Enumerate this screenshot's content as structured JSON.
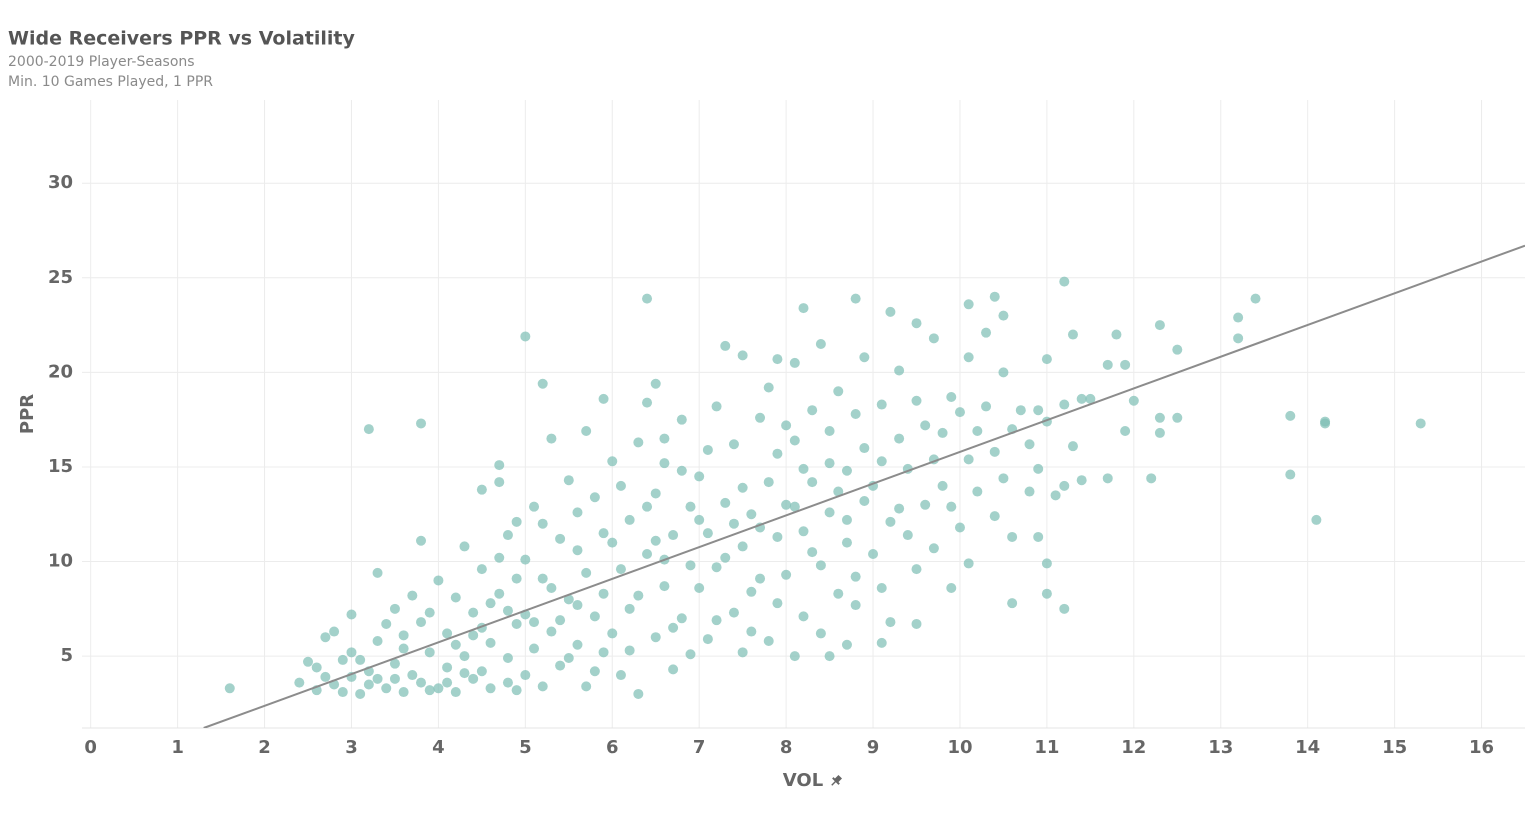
{
  "chart_data": {
    "type": "scatter",
    "title": "Wide Receivers PPR vs Volatility",
    "subtitle": [
      "2000-2019 Player-Seasons",
      "Min. 10 Games Played, 1 PPR"
    ],
    "x_label": "VOL",
    "y_label": "PPR",
    "color": "#7fbfb5",
    "grid": true,
    "xlim": [
      -0.1,
      16.5
    ],
    "ylim": [
      1.2,
      34.4
    ],
    "xticks": [
      0,
      1,
      2,
      3,
      4,
      5,
      6,
      7,
      8,
      9,
      10,
      11,
      12,
      13,
      14,
      15,
      16
    ],
    "yticks": [
      5,
      10,
      15,
      20,
      25,
      30
    ],
    "trendline": {
      "color": "#8c8c8c",
      "x": [
        1.3,
        16.5
      ],
      "y": [
        1.2,
        26.7
      ]
    },
    "x": [
      1.6,
      3.2,
      3.8,
      5.0,
      5.2,
      6.4,
      8.2,
      8.8,
      10.1,
      10.4,
      11.2,
      13.4,
      13.2,
      13.2,
      12.3,
      12.5,
      11.3,
      11.8,
      11.7,
      11.9,
      11.5,
      12.0,
      12.3,
      12.5,
      12.3,
      11.9,
      11.7,
      12.2,
      11.4,
      13.8,
      14.2,
      14.2,
      15.3,
      13.8,
      14.1,
      11.0,
      11.0,
      11.2,
      10.6,
      10.1,
      9.5,
      9.2,
      9.1,
      8.7,
      8.5,
      8.1,
      2.4,
      2.5,
      2.6,
      2.7,
      2.8,
      2.9,
      2.6,
      2.8,
      2.9,
      3.0,
      3.0,
      2.7,
      3.1,
      3.2,
      3.3,
      3.3,
      3.4,
      3.5,
      3.5,
      3.6,
      3.6,
      3.7,
      3.8,
      3.8,
      3.9,
      3.9,
      3.4,
      3.2,
      3.1,
      3.7,
      3.5,
      3.9,
      3.3,
      3.6,
      3.8,
      4.0,
      3.0,
      4.0,
      4.1,
      4.1,
      4.2,
      4.2,
      4.3,
      4.3,
      4.4,
      4.4,
      4.5,
      4.5,
      4.5,
      4.6,
      4.6,
      4.7,
      4.7,
      4.7,
      4.8,
      4.8,
      4.9,
      4.9,
      4.9,
      4.2,
      4.4,
      4.6,
      4.8,
      4.1,
      4.3,
      4.7,
      4.9,
      4.5,
      4.8,
      5.0,
      5.0,
      5.1,
      5.1,
      5.2,
      5.2,
      5.3,
      5.3,
      5.4,
      5.4,
      5.5,
      5.5,
      5.6,
      5.6,
      5.7,
      5.7,
      5.8,
      5.8,
      5.9,
      5.9,
      5.1,
      5.3,
      5.5,
      5.7,
      5.9,
      5.2,
      5.4,
      5.6,
      5.8,
      5.0,
      5.6,
      5.9,
      6.0,
      6.0,
      6.1,
      6.1,
      6.2,
      6.2,
      6.3,
      6.3,
      6.4,
      6.4,
      6.5,
      6.5,
      6.6,
      6.6,
      6.7,
      6.7,
      6.8,
      6.8,
      6.9,
      6.9,
      6.1,
      6.3,
      6.5,
      6.7,
      6.9,
      6.2,
      6.4,
      6.6,
      6.8,
      6.0,
      6.5,
      6.6,
      7.0,
      7.0,
      7.1,
      7.1,
      7.2,
      7.2,
      7.3,
      7.3,
      7.4,
      7.4,
      7.5,
      7.5,
      7.6,
      7.6,
      7.7,
      7.7,
      7.8,
      7.8,
      7.9,
      7.9,
      7.1,
      7.3,
      7.5,
      7.7,
      7.9,
      7.2,
      7.4,
      7.6,
      7.8,
      7.0,
      7.5,
      7.9,
      8.0,
      8.0,
      8.1,
      8.1,
      8.2,
      8.2,
      8.3,
      8.3,
      8.4,
      8.4,
      8.5,
      8.5,
      8.6,
      8.6,
      8.7,
      8.7,
      8.8,
      8.8,
      8.9,
      8.9,
      8.1,
      8.3,
      8.5,
      8.7,
      8.9,
      8.2,
      8.4,
      8.6,
      8.8,
      8.0,
      9.0,
      9.0,
      9.1,
      9.1,
      9.2,
      9.2,
      9.3,
      9.3,
      9.4,
      9.4,
      9.5,
      9.5,
      9.6,
      9.6,
      9.7,
      9.7,
      9.8,
      9.8,
      9.9,
      9.9,
      9.1,
      9.3,
      9.5,
      9.7,
      9.9,
      10.0,
      10.0,
      10.1,
      10.1,
      10.2,
      10.2,
      10.3,
      10.3,
      10.4,
      10.4,
      10.5,
      10.5,
      10.6,
      10.6,
      10.7,
      10.8,
      10.8,
      10.9,
      10.9,
      10.5,
      10.9,
      11.0,
      11.0,
      11.1,
      11.2,
      11.3,
      11.2,
      11.4
    ],
    "values": [
      3.3,
      17.0,
      17.3,
      21.9,
      19.4,
      23.9,
      23.4,
      23.9,
      23.6,
      24.0,
      24.8,
      23.9,
      22.9,
      21.8,
      22.5,
      21.2,
      22.0,
      22.0,
      20.4,
      20.4,
      18.6,
      18.5,
      17.6,
      17.6,
      16.8,
      16.9,
      14.4,
      14.4,
      14.3,
      17.7,
      17.3,
      17.4,
      17.3,
      14.6,
      12.2,
      9.9,
      8.3,
      7.5,
      7.8,
      9.9,
      6.7,
      6.8,
      5.7,
      5.6,
      5.0,
      5.0,
      3.6,
      4.7,
      3.2,
      6.0,
      6.3,
      4.8,
      4.4,
      3.5,
      3.1,
      5.2,
      7.2,
      3.9,
      3.0,
      4.2,
      9.4,
      5.8,
      3.3,
      7.5,
      4.6,
      3.1,
      6.1,
      8.2,
      3.6,
      11.1,
      5.2,
      3.2,
      6.7,
      3.5,
      4.8,
      4.0,
      3.8,
      7.3,
      3.8,
      5.4,
      6.8,
      3.3,
      3.9,
      9.0,
      4.4,
      6.2,
      3.1,
      8.1,
      5.0,
      10.8,
      3.8,
      7.3,
      4.2,
      9.6,
      13.8,
      5.7,
      3.3,
      15.1,
      14.2,
      8.3,
      4.9,
      11.4,
      6.7,
      3.2,
      12.1,
      5.6,
      6.1,
      7.8,
      3.6,
      3.6,
      4.1,
      10.2,
      9.1,
      6.5,
      7.4,
      4.0,
      7.2,
      12.9,
      5.4,
      3.4,
      9.1,
      16.5,
      6.3,
      11.2,
      4.5,
      8.0,
      14.3,
      5.6,
      10.6,
      16.9,
      3.4,
      7.1,
      13.4,
      18.6,
      5.2,
      6.8,
      8.6,
      4.9,
      9.4,
      11.5,
      12.0,
      6.9,
      7.7,
      4.2,
      10.1,
      12.6,
      8.3,
      6.2,
      15.3,
      9.6,
      4.0,
      12.2,
      7.5,
      16.3,
      3.0,
      18.4,
      10.4,
      6.0,
      13.6,
      8.7,
      15.2,
      11.4,
      4.3,
      17.5,
      7.0,
      12.9,
      9.8,
      14.0,
      8.2,
      11.1,
      6.5,
      5.1,
      5.3,
      12.9,
      10.1,
      14.8,
      11.0,
      19.4,
      16.5,
      8.6,
      14.5,
      11.5,
      5.9,
      18.2,
      9.7,
      21.4,
      13.1,
      7.3,
      16.2,
      10.8,
      20.9,
      12.5,
      6.3,
      17.6,
      9.1,
      14.2,
      19.2,
      11.3,
      7.8,
      15.9,
      10.2,
      13.9,
      11.8,
      15.7,
      6.9,
      12.0,
      8.4,
      5.8,
      12.2,
      5.2,
      20.7,
      13.0,
      9.3,
      16.4,
      20.5,
      11.6,
      7.1,
      18.0,
      14.2,
      9.8,
      21.5,
      12.6,
      16.9,
      8.3,
      19.0,
      14.8,
      11.0,
      17.8,
      9.2,
      13.2,
      20.8,
      12.9,
      10.5,
      15.2,
      12.2,
      16.0,
      14.9,
      6.2,
      13.7,
      7.7,
      17.2,
      14.0,
      10.4,
      18.3,
      8.6,
      23.2,
      12.1,
      16.5,
      20.1,
      11.4,
      14.9,
      22.6,
      9.6,
      17.2,
      13.0,
      21.8,
      10.7,
      16.8,
      14.0,
      12.9,
      18.7,
      15.3,
      12.8,
      18.5,
      15.4,
      8.6,
      17.9,
      11.8,
      20.8,
      15.4,
      13.7,
      16.9,
      18.2,
      22.1,
      12.4,
      15.8,
      20.0,
      14.4,
      11.3,
      17.0,
      18.0,
      13.7,
      16.2,
      14.9,
      11.3,
      23.0,
      18.0,
      20.7,
      17.4,
      13.5,
      14.0,
      16.1,
      18.3,
      18.6
    ]
  }
}
